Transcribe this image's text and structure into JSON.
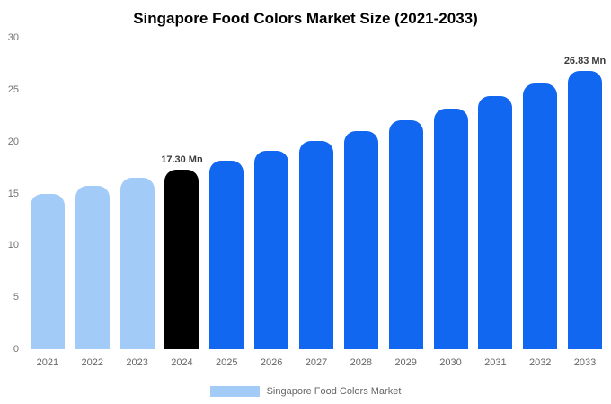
{
  "chart_data": {
    "type": "bar",
    "title": "Singapore Food Colors Market Size (2021-2033)",
    "xlabel": "",
    "ylabel": "",
    "categories": [
      "2021",
      "2022",
      "2023",
      "2024",
      "2025",
      "2026",
      "2027",
      "2028",
      "2029",
      "2030",
      "2031",
      "2032",
      "2033"
    ],
    "values": [
      14.95,
      15.7,
      16.48,
      17.3,
      18.17,
      19.07,
      20.03,
      21.03,
      22.08,
      23.18,
      24.34,
      25.56,
      26.83
    ],
    "point_labels": [
      "",
      "",
      "",
      "17.30 Mn",
      "",
      "",
      "",
      "",
      "",
      "",
      "",
      "",
      "26.83 Mn"
    ],
    "bar_colors": [
      "#a2cbf7",
      "#a2cbf7",
      "#a2cbf7",
      "#000000",
      "#1267f0",
      "#1267f0",
      "#1267f0",
      "#1267f0",
      "#1267f0",
      "#1267f0",
      "#1267f0",
      "#1267f0",
      "#1267f0"
    ],
    "ylim": [
      0,
      30
    ],
    "yticks": [
      0,
      5,
      10,
      15,
      20,
      25,
      30
    ],
    "grid": false,
    "legend": {
      "label": "Singapore Food Colors Market",
      "swatch_color": "#a2cbf7",
      "position": "bottom"
    }
  }
}
